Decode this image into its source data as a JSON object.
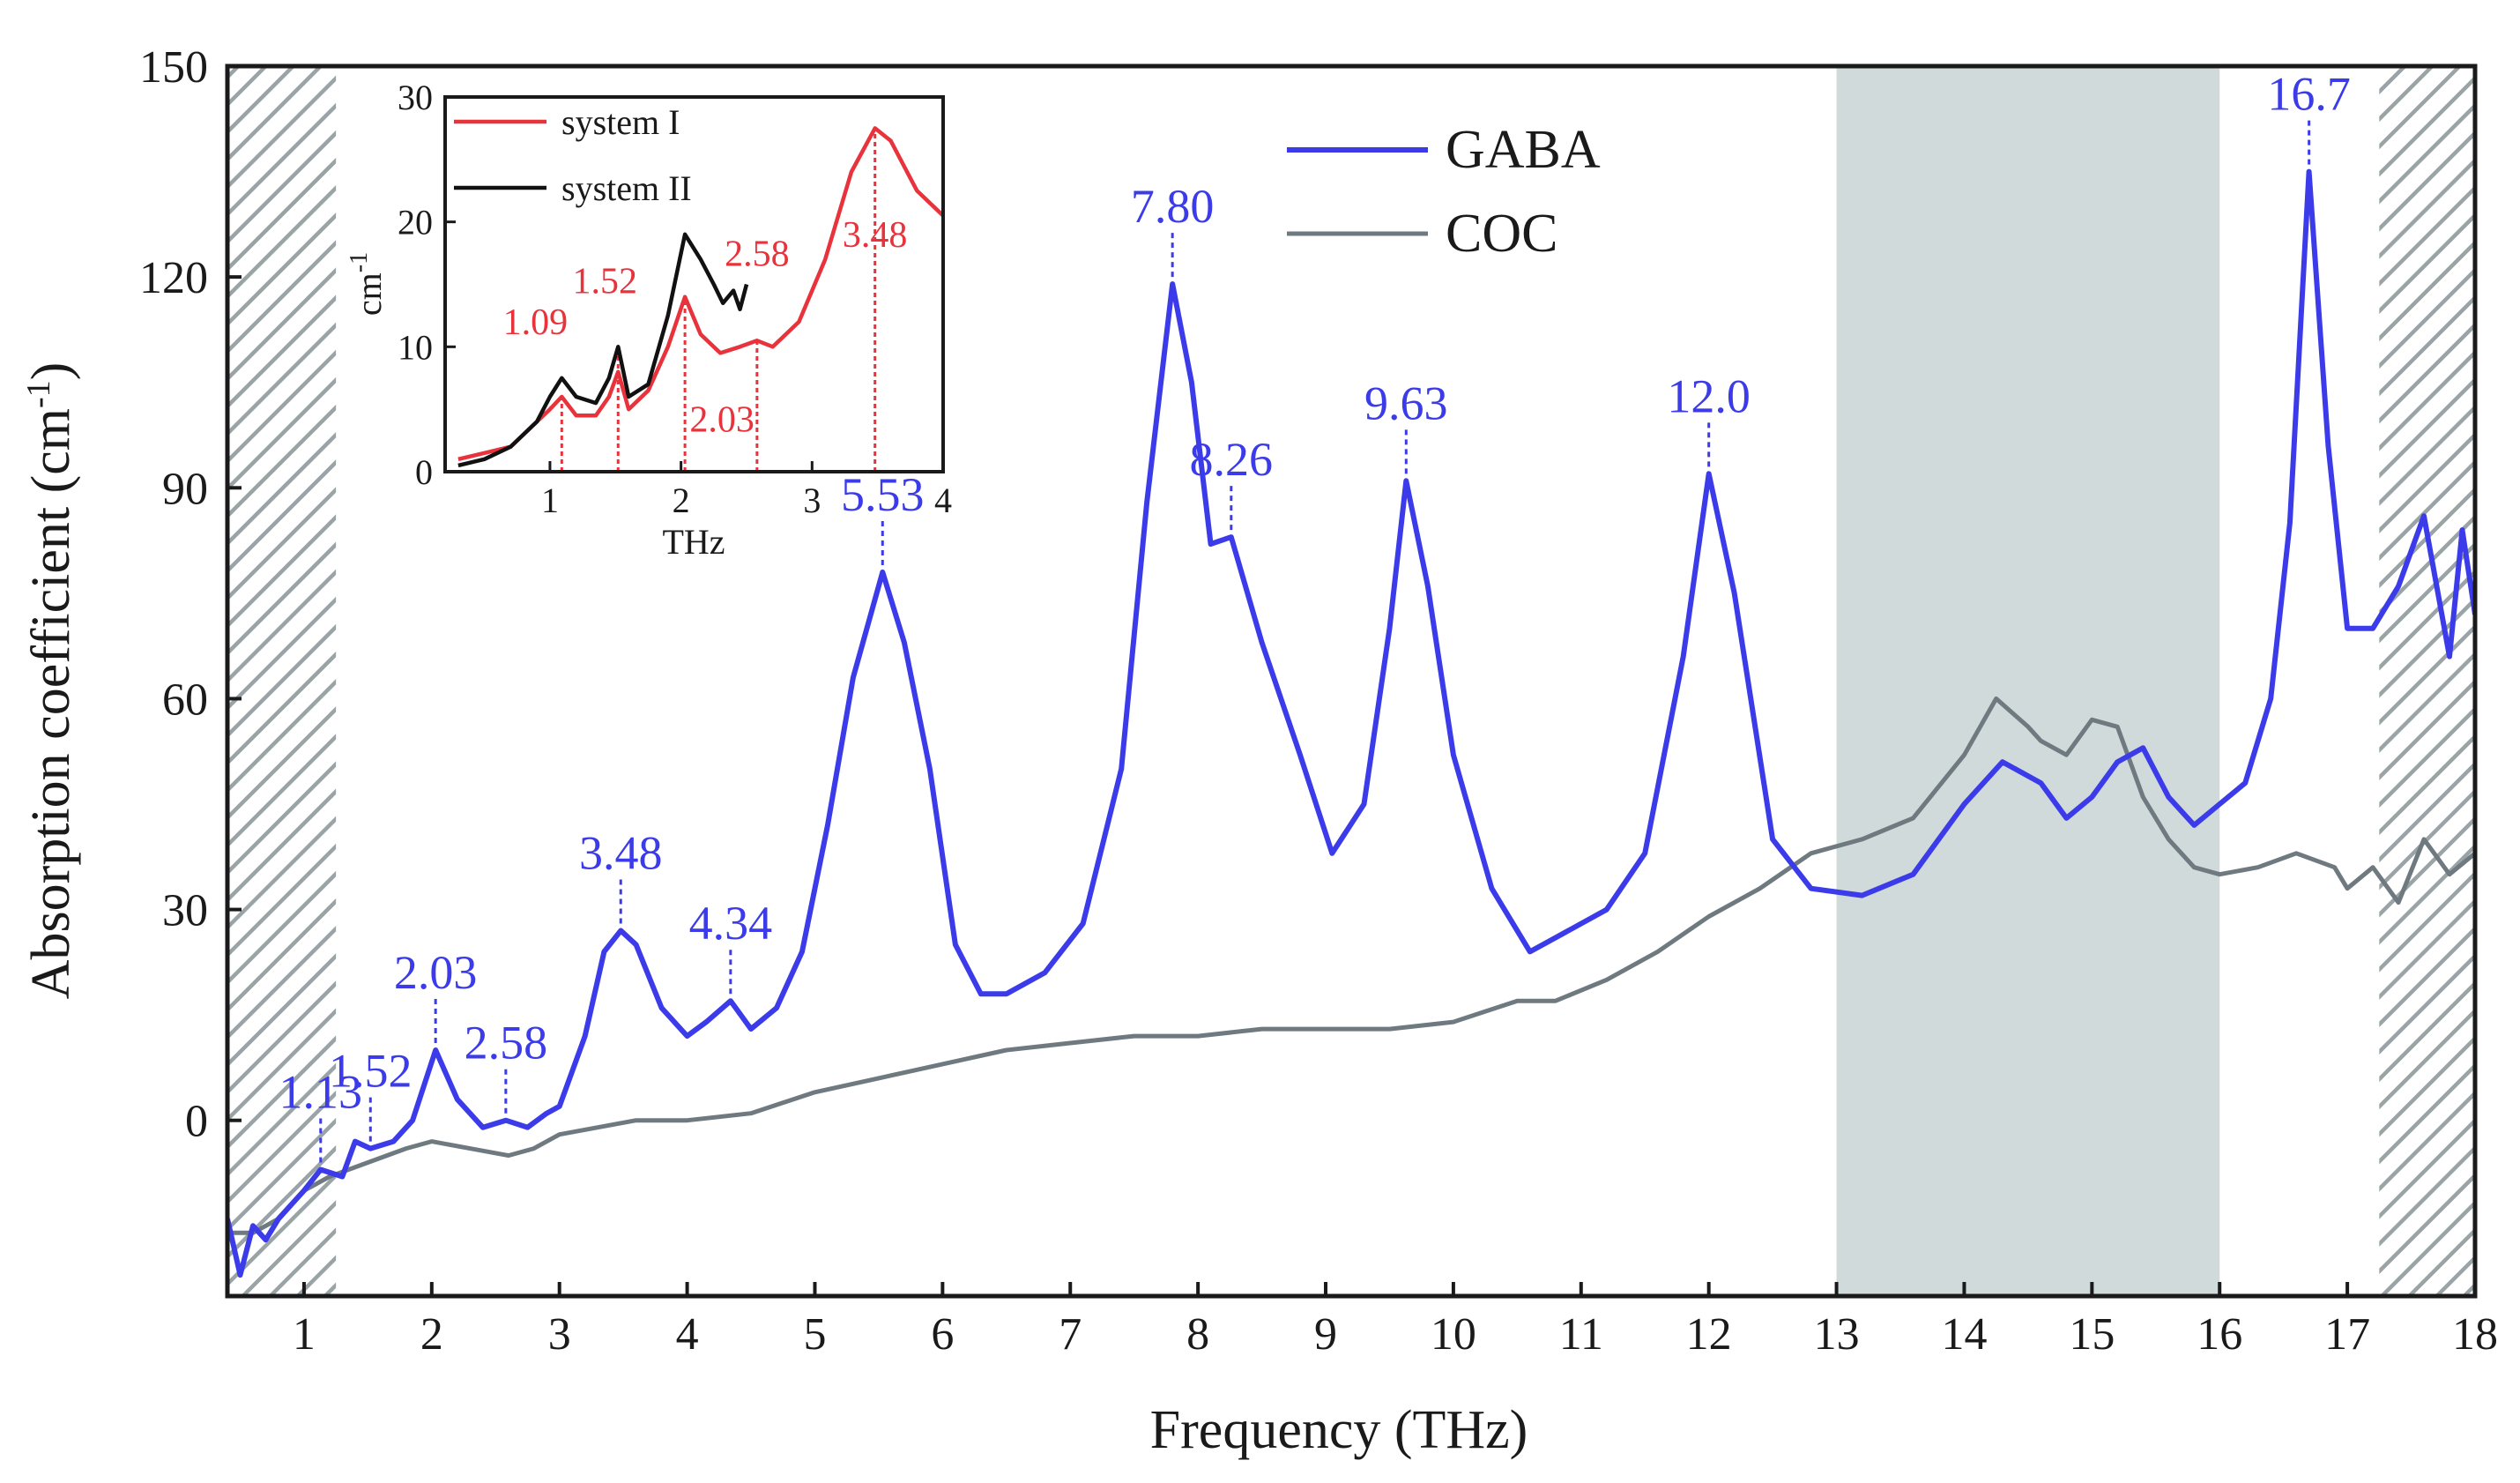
{
  "chart_data": [
    {
      "type": "line",
      "xlabel": "Frequency (THz)",
      "ylabel": "Absorption coefficient (cm",
      "ylabel_sup": "-1",
      "ylabel_close": ")",
      "xlim": [
        0.4,
        18
      ],
      "ylim": [
        -25,
        150
      ],
      "xticks": [
        "1",
        "2",
        "3",
        "4",
        "5",
        "6",
        "7",
        "8",
        "9",
        "10",
        "11",
        "12",
        "13",
        "14",
        "15",
        "16",
        "17",
        "18"
      ],
      "yticks": [
        "0",
        "30",
        "60",
        "90",
        "120",
        "150"
      ],
      "shaded_band": [
        13,
        16
      ],
      "hatched_bands": [
        [
          0.4,
          1.25
        ],
        [
          17.25,
          18
        ]
      ],
      "legend_position": "top-center-right",
      "colors": {
        "GABA": "#3b3bea",
        "COC": "#6f7a80",
        "shade": "#d1dada"
      },
      "series": [
        {
          "name": "GABA",
          "x": [
            0.4,
            0.5,
            0.6,
            0.7,
            0.8,
            0.9,
            1.0,
            1.13,
            1.3,
            1.4,
            1.52,
            1.7,
            1.85,
            2.03,
            2.2,
            2.4,
            2.58,
            2.75,
            2.9,
            3.0,
            3.2,
            3.35,
            3.48,
            3.6,
            3.8,
            4.0,
            4.15,
            4.34,
            4.5,
            4.7,
            4.9,
            5.1,
            5.3,
            5.53,
            5.7,
            5.9,
            6.1,
            6.3,
            6.5,
            6.8,
            7.1,
            7.4,
            7.6,
            7.8,
            7.95,
            8.1,
            8.26,
            8.5,
            8.8,
            9.05,
            9.3,
            9.5,
            9.63,
            9.8,
            10.0,
            10.3,
            10.6,
            10.8,
            11.2,
            11.5,
            11.8,
            12.0,
            12.2,
            12.5,
            12.8,
            13.2,
            13.6,
            14.0,
            14.3,
            14.6,
            14.8,
            15.0,
            15.2,
            15.4,
            15.6,
            15.8,
            16.0,
            16.2,
            16.4,
            16.55,
            16.7,
            16.85,
            17.0,
            17.2,
            17.4,
            17.6,
            17.8,
            17.9,
            18.0
          ],
          "y": [
            -14,
            -22,
            -15,
            -17,
            -14,
            -12,
            -10,
            -7,
            -8,
            -3,
            -4,
            -3,
            0,
            10,
            3,
            -1,
            0,
            -1,
            1,
            2,
            12,
            24,
            27,
            25,
            16,
            12,
            14,
            17,
            13,
            16,
            24,
            42,
            63,
            78,
            68,
            50,
            25,
            18,
            18,
            21,
            28,
            50,
            88,
            119,
            105,
            82,
            83,
            68,
            52,
            38,
            45,
            70,
            91,
            76,
            52,
            33,
            24,
            26,
            30,
            38,
            66,
            92,
            75,
            40,
            33,
            32,
            35,
            45,
            51,
            48,
            43,
            46,
            51,
            53,
            46,
            42,
            45,
            48,
            60,
            85,
            135,
            96,
            70,
            70,
            76,
            86,
            66,
            84,
            72
          ]
        },
        {
          "name": "COC",
          "x": [
            0.4,
            0.6,
            0.8,
            1.0,
            1.2,
            1.5,
            1.8,
            2.0,
            2.3,
            2.6,
            2.8,
            3.0,
            3.3,
            3.6,
            4.0,
            4.5,
            5.0,
            5.5,
            6.0,
            6.5,
            7.0,
            7.5,
            8.0,
            8.5,
            9.0,
            9.5,
            10.0,
            10.5,
            10.8,
            11.2,
            11.6,
            12.0,
            12.4,
            12.8,
            13.2,
            13.6,
            14.0,
            14.25,
            14.5,
            14.6,
            14.8,
            15.0,
            15.2,
            15.4,
            15.6,
            15.8,
            16.0,
            16.3,
            16.6,
            16.9,
            17.0,
            17.2,
            17.4,
            17.6,
            17.8,
            18.0
          ],
          "y": [
            -16,
            -16,
            -14,
            -10,
            -8,
            -6,
            -4,
            -3,
            -4,
            -5,
            -4,
            -2,
            -1,
            0,
            0,
            1,
            4,
            6,
            8,
            10,
            11,
            12,
            12,
            13,
            13,
            13,
            14,
            17,
            17,
            20,
            24,
            29,
            33,
            38,
            40,
            43,
            52,
            60,
            56,
            54,
            52,
            57,
            56,
            46,
            40,
            36,
            35,
            36,
            38,
            36,
            33,
            36,
            31,
            40,
            35,
            38
          ]
        }
      ],
      "annotations": [
        {
          "text": "1.13",
          "x": 1.13,
          "y": -7
        },
        {
          "text": "1.52",
          "x": 1.52,
          "y": -4
        },
        {
          "text": "2.03",
          "x": 2.03,
          "y": 10
        },
        {
          "text": "2.58",
          "x": 2.58,
          "y": 0
        },
        {
          "text": "3.48",
          "x": 3.48,
          "y": 27
        },
        {
          "text": "4.34",
          "x": 4.34,
          "y": 17
        },
        {
          "text": "5.53",
          "x": 5.53,
          "y": 78
        },
        {
          "text": "7.80",
          "x": 7.8,
          "y": 119
        },
        {
          "text": "8.26",
          "x": 8.26,
          "y": 83
        },
        {
          "text": "9.63",
          "x": 9.63,
          "y": 91
        },
        {
          "text": "12.0",
          "x": 12.0,
          "y": 92
        },
        {
          "text": "16.7",
          "x": 16.7,
          "y": 135
        }
      ]
    },
    {
      "type": "line",
      "inset": true,
      "xlabel": "THz",
      "ylabel": "cm",
      "ylabel_sup": "-1",
      "xlim": [
        0.2,
        4
      ],
      "ylim": [
        0,
        30
      ],
      "xticks": [
        "1",
        "2",
        "3",
        "4"
      ],
      "yticks": [
        "0",
        "10",
        "20",
        "30"
      ],
      "colors": {
        "system I": "#e8323c",
        "system II": "#111111"
      },
      "series": [
        {
          "name": "system I",
          "x": [
            0.3,
            0.5,
            0.7,
            0.9,
            1.0,
            1.09,
            1.2,
            1.35,
            1.45,
            1.52,
            1.6,
            1.75,
            1.9,
            2.03,
            2.15,
            2.3,
            2.45,
            2.58,
            2.7,
            2.9,
            3.1,
            3.3,
            3.48,
            3.6,
            3.8,
            4.0
          ],
          "y": [
            1,
            1.5,
            2,
            4,
            5,
            6,
            4.5,
            4.5,
            6,
            8,
            5,
            6.5,
            10,
            14,
            11,
            9.5,
            10,
            10.5,
            10,
            12,
            17,
            24,
            27.5,
            26.5,
            22.5,
            20.5
          ]
        },
        {
          "name": "system II",
          "x": [
            0.3,
            0.5,
            0.7,
            0.9,
            1.0,
            1.09,
            1.2,
            1.35,
            1.45,
            1.52,
            1.6,
            1.75,
            1.9,
            2.03,
            2.15,
            2.25,
            2.32,
            2.4,
            2.45,
            2.5
          ],
          "y": [
            0.5,
            1,
            2,
            4,
            6,
            7.5,
            6,
            5.5,
            7.5,
            10,
            6,
            7,
            12.5,
            19,
            17,
            15,
            13.5,
            14.5,
            13,
            15
          ]
        }
      ],
      "annotations": [
        {
          "text": "1.09",
          "x": 1.09,
          "y": 6
        },
        {
          "text": "1.52",
          "x": 1.52,
          "y": 10
        },
        {
          "text": "2.03",
          "x": 2.03,
          "y": 14
        },
        {
          "text": "2.58",
          "x": 2.58,
          "y": 10.5
        },
        {
          "text": "3.48",
          "x": 3.48,
          "y": 27.5
        }
      ]
    }
  ]
}
